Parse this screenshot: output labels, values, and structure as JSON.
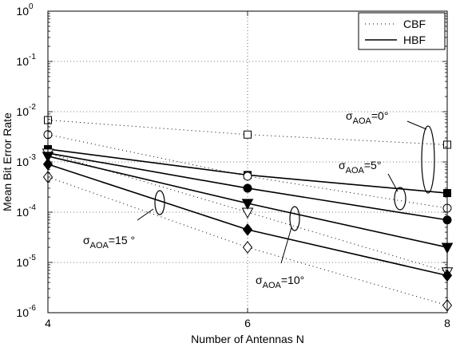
{
  "chart_data": {
    "type": "line",
    "title": "",
    "xlabel": "Number of Antennas N",
    "ylabel": "Mean Bit Error Rate",
    "x_scale": "linear",
    "y_scale": "log",
    "xlim": [
      4,
      8
    ],
    "ylim": [
      1e-06,
      1
    ],
    "x_ticks": [
      "4",
      "6",
      "8"
    ],
    "y_tick_exponents": [
      "-6",
      "-5",
      "-4",
      "-3",
      "-2",
      "-1",
      "0"
    ],
    "y_tick_base": "10",
    "grid": true,
    "legend_position": "top-right",
    "legend": [
      {
        "label": "CBF",
        "style": "dotted"
      },
      {
        "label": "HBF",
        "style": "solid"
      }
    ],
    "series": [
      {
        "group": "σAOA=0°",
        "method": "CBF",
        "marker": "square-open",
        "x": [
          4,
          6,
          8
        ],
        "y": [
          0.0068,
          0.0035,
          0.0022
        ]
      },
      {
        "group": "σAOA=0°",
        "method": "HBF",
        "marker": "square-filled",
        "x": [
          4,
          6,
          8
        ],
        "y": [
          0.0018,
          0.00055,
          0.00024
        ]
      },
      {
        "group": "σAOA=5°",
        "method": "CBF",
        "marker": "circle-open",
        "x": [
          4,
          6,
          8
        ],
        "y": [
          0.0035,
          0.00052,
          0.00012
        ]
      },
      {
        "group": "σAOA=5°",
        "method": "HBF",
        "marker": "circle-filled",
        "x": [
          4,
          6,
          8
        ],
        "y": [
          0.0015,
          0.0003,
          7e-05
        ]
      },
      {
        "group": "σAOA=10°",
        "method": "CBF",
        "marker": "triangle-down-open",
        "x": [
          4,
          6,
          8
        ],
        "y": [
          0.0015,
          0.0001,
          6.5e-06
        ]
      },
      {
        "group": "σAOA=10°",
        "method": "HBF",
        "marker": "triangle-down-filled",
        "x": [
          4,
          6,
          8
        ],
        "y": [
          0.0013,
          0.00015,
          2e-05
        ]
      },
      {
        "group": "σAOA=15°",
        "method": "CBF",
        "marker": "diamond-open",
        "x": [
          4,
          6,
          8
        ],
        "y": [
          0.0005,
          2e-05,
          1.4e-06
        ]
      },
      {
        "group": "σAOA=15°",
        "method": "HBF",
        "marker": "diamond-filled",
        "x": [
          4,
          6,
          8
        ],
        "y": [
          0.0009,
          4.5e-05,
          5.5e-06
        ]
      }
    ],
    "annotations": [
      {
        "main": "σ",
        "sub": "AOA",
        "tail": "=0°"
      },
      {
        "main": "σ",
        "sub": "AOA",
        "tail": "=5°"
      },
      {
        "main": "σ",
        "sub": "AOA",
        "tail": "=10°"
      },
      {
        "main": "σ",
        "sub": "AOA",
        "tail": "=15 °"
      }
    ]
  }
}
